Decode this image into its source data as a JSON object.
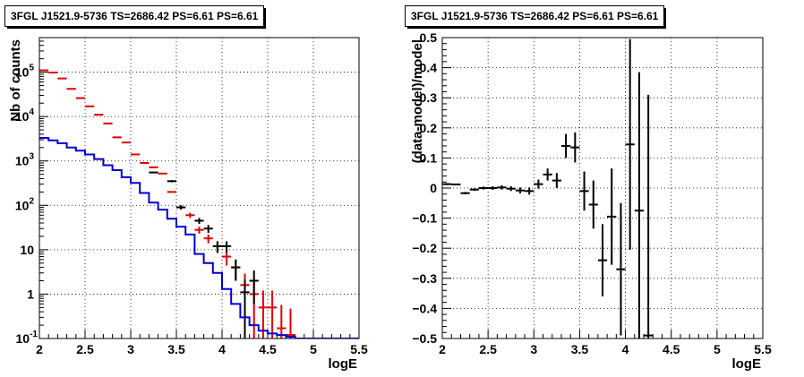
{
  "chart_data": [
    {
      "type": "histogram",
      "title": "3FGL J1521.9-5736 TS=2686.42 PS=6.61 PS=6.61",
      "xlabel": "logE",
      "ylabel": "Nb of counts",
      "yscale": "log",
      "xlim": [
        2,
        5.5
      ],
      "ylim": [
        0.1,
        600000
      ],
      "x_ticks": [
        "2",
        "2.5",
        "3",
        "3.5",
        "4",
        "4.5",
        "5",
        "5.5"
      ],
      "y_ticks": [
        "10^-1",
        "1",
        "10",
        "10^2",
        "10^3",
        "10^4",
        "10^5"
      ],
      "y_tick_values": [
        0.1,
        1,
        10,
        100,
        1000,
        10000,
        100000
      ],
      "grid": true,
      "bin_width": 0.1,
      "series": [
        {
          "color": "#e00000",
          "style": "points",
          "x": [
            2.05,
            2.15,
            2.25,
            2.35,
            2.45,
            2.55,
            2.65,
            2.75,
            2.85,
            2.95,
            3.05,
            3.15,
            3.25,
            3.35,
            3.45,
            3.55,
            3.65,
            3.75,
            3.85,
            3.95,
            4.05,
            4.15,
            4.25,
            4.35,
            4.45,
            4.55,
            4.65,
            4.75
          ],
          "y": [
            110000,
            98000,
            72000,
            42000,
            26000,
            17000,
            11000,
            7000,
            3400,
            2600,
            1400,
            900,
            720,
            520,
            200,
            90,
            60,
            28,
            18,
            12,
            7,
            4,
            1.6,
            1.0,
            0.5,
            0.5,
            0.17,
            0.12
          ],
          "yerr": [
            0,
            0,
            0,
            0,
            0,
            0,
            0,
            0,
            0,
            0,
            0,
            0,
            0,
            0,
            0,
            10,
            8,
            5,
            4,
            3.5,
            2.6,
            2.0,
            1.3,
            1.0,
            0.7,
            0.7,
            0.4,
            0.35
          ]
        },
        {
          "color": "#000000",
          "style": "points",
          "x": [
            3.25,
            3.45,
            3.55,
            3.75,
            3.85,
            3.95,
            4.05,
            4.15,
            4.25,
            4.35
          ],
          "y": [
            550,
            350,
            90,
            45,
            30,
            12,
            12,
            4,
            1.1,
            2
          ],
          "yerr": [
            20,
            20,
            10,
            7,
            6,
            3.5,
            3.5,
            2.0,
            1.0,
            1.4
          ]
        },
        {
          "color": "#0000d0",
          "style": "step",
          "x_edges": [
            2.0,
            2.1,
            2.2,
            2.3,
            2.4,
            2.5,
            2.6,
            2.7,
            2.8,
            2.9,
            3.0,
            3.1,
            3.2,
            3.3,
            3.4,
            3.5,
            3.6,
            3.7,
            3.8,
            3.9,
            4.0,
            4.1,
            4.2,
            4.3,
            4.4,
            4.5,
            4.6,
            4.7,
            4.8,
            4.9,
            5.0,
            5.5
          ],
          "y": [
            3300,
            2900,
            2500,
            2000,
            1700,
            1400,
            1100,
            800,
            620,
            430,
            320,
            190,
            115,
            80,
            50,
            33,
            22,
            8,
            5,
            3,
            1.3,
            0.6,
            0.3,
            0.2,
            0.15,
            0.13,
            0.12,
            0.11,
            0.1,
            0.1,
            0.1
          ]
        }
      ]
    },
    {
      "type": "scatter",
      "title": "3FGL J1521.9-5736 TS=2686.42 PS=6.61 PS=6.61",
      "xlabel": "logE",
      "ylabel": "(data-model)/model",
      "xlim": [
        2,
        5.5
      ],
      "ylim": [
        -0.5,
        0.5
      ],
      "x_ticks": [
        "2",
        "2.5",
        "3",
        "3.5",
        "4",
        "4.5",
        "5",
        "5.5"
      ],
      "y_ticks": [
        "−0.5",
        "−0.4",
        "−0.3",
        "−0.2",
        "−0.1",
        "0",
        "0.1",
        "0.2",
        "0.3",
        "0.4",
        "0.5"
      ],
      "y_tick_values": [
        -0.5,
        -0.4,
        -0.3,
        -0.2,
        -0.1,
        0,
        0.1,
        0.2,
        0.3,
        0.4,
        0.5
      ],
      "grid": true,
      "bin_width": 0.1,
      "series": [
        {
          "color": "#000000",
          "style": "points",
          "x": [
            2.05,
            2.15,
            2.25,
            2.35,
            2.45,
            2.55,
            2.65,
            2.75,
            2.85,
            2.95,
            3.05,
            3.15,
            3.25,
            3.35,
            3.45,
            3.55,
            3.65,
            3.75,
            3.85,
            3.95,
            4.05,
            4.15,
            4.25
          ],
          "y": [
            0.013,
            0.012,
            -0.017,
            -0.005,
            0.0,
            0.0,
            0.002,
            -0.002,
            -0.008,
            -0.01,
            0.013,
            0.045,
            0.025,
            0.14,
            0.135,
            -0.01,
            -0.055,
            -0.24,
            -0.095,
            -0.27,
            0.145,
            -0.075,
            -0.49
          ],
          "yerr": [
            0.003,
            0.003,
            0.004,
            0.004,
            0.005,
            0.006,
            0.007,
            0.008,
            0.01,
            0.012,
            0.015,
            0.02,
            0.025,
            0.04,
            0.05,
            0.065,
            0.08,
            0.12,
            0.16,
            0.22,
            0.35,
            0.46,
            0.8
          ]
        }
      ]
    }
  ]
}
